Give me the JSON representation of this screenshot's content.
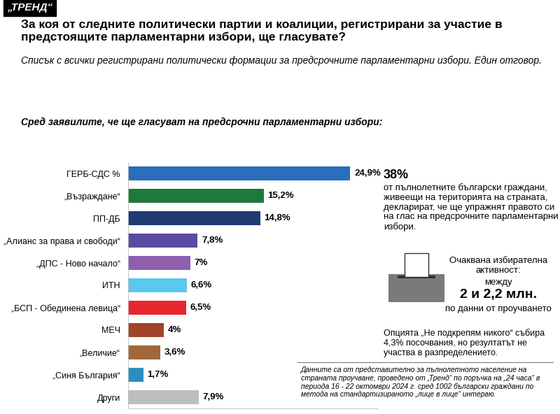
{
  "chart_data": {
    "type": "bar",
    "orientation": "horizontal",
    "header": "„ТРЕНД“",
    "title": "За коя от следните политически партии и коалиции, регистрирани за участие в предстоящите парламентарни избори, ще гласувате?",
    "subtitle": "Списък с всички регистрирани политически формации за предсрочните парламентарни избори. Един отговор.",
    "subset_label": "Сред заявилите, че ще гласуват на предсрочни парламентарни избори:",
    "categories": [
      "ГЕРБ-СДС %",
      "„Възраждане“",
      "ПП-ДБ",
      "„Алианс за права и свободи“",
      "„ДПС - Ново начало“",
      "ИТН",
      "„БСП - Обединена левица“",
      "МЕЧ",
      "„Величие“",
      "„Синя България“",
      "Други"
    ],
    "values": [
      24.9,
      15.2,
      14.8,
      7.8,
      7,
      6.6,
      6.5,
      4,
      3.6,
      1.7,
      7.9
    ],
    "value_labels": [
      "24,9%",
      "15,2%",
      "14,8%",
      "7,8%",
      "7%",
      "6,6%",
      "6,5%",
      "4%",
      "3,6%",
      "1,7%",
      "7,9%"
    ],
    "colors": [
      "#2a6ebb",
      "#1e7a3c",
      "#1f3b73",
      "#5b4aa0",
      "#8f5fae",
      "#5bc8ef",
      "#e8262e",
      "#a0442a",
      "#a0683a",
      "#2a8fbf",
      "#bdbdbd"
    ],
    "data_labels": true,
    "tick_labels": "y",
    "xlim": [
      0,
      28
    ],
    "xticks": [],
    "annotations": {
      "participation": {
        "highlight": "38%",
        "text": "от пълнолетните български граждани, живеещи на територията на страната, декларират, че ще упражнят правото си на глас на предсрочните парламентарни избори."
      },
      "turnout": {
        "label": "Очаквана избирателна активност:",
        "prefix": "между",
        "value": "2 и 2,2 млн.",
        "source": "по данни от проучването"
      },
      "none_option": "Опцията „Не подкрепям никого“ събира 4,3% посочвания, но резултатът не участва в разпределението.",
      "footnote": "Данните са от представително за пълнолетното население на страната проучване, проведено от „Тренд“ по поръчка на „24 часа“ в периода 16 - 22 октомври 2024 г. сред 1002 български граждани по метода на стандартизираното „лице в лице“ интервю."
    }
  }
}
